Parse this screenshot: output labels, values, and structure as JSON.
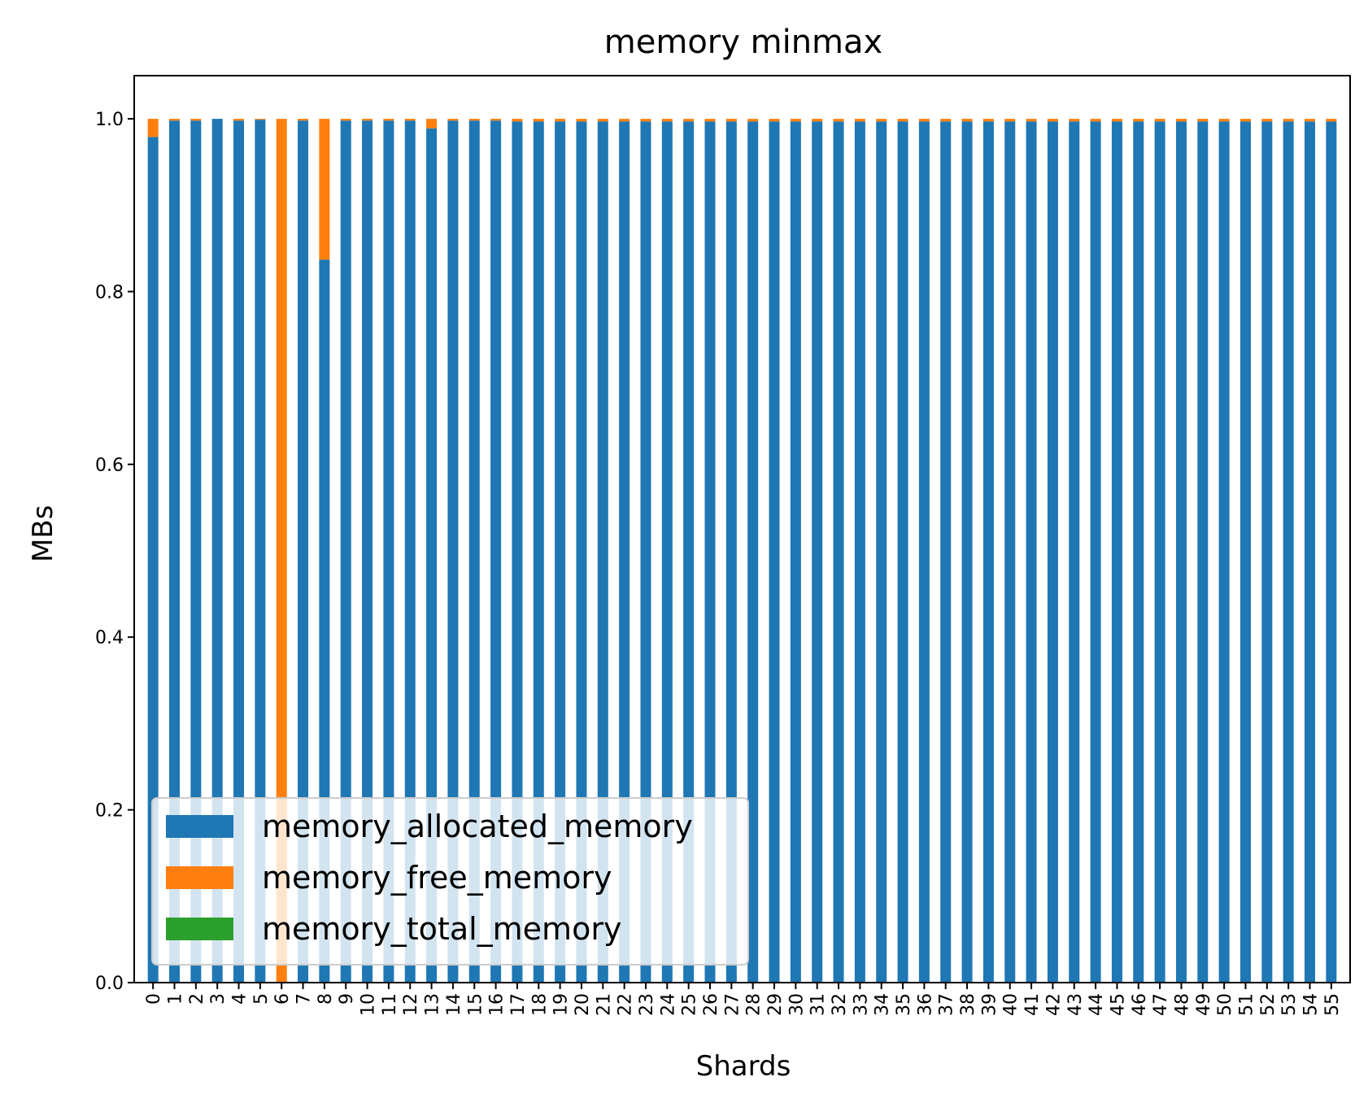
{
  "chart_data": {
    "type": "bar",
    "stacked": true,
    "title": "memory minmax",
    "xlabel": "Shards",
    "ylabel": "MBs",
    "ylim": [
      0,
      1.05
    ],
    "yticks": [
      "0.0",
      "0.2",
      "0.4",
      "0.6",
      "0.8",
      "1.0"
    ],
    "grid": false,
    "legend_position": "lower-left",
    "categories": [
      "0",
      "1",
      "2",
      "3",
      "4",
      "5",
      "6",
      "7",
      "8",
      "9",
      "10",
      "11",
      "12",
      "13",
      "14",
      "15",
      "16",
      "17",
      "18",
      "19",
      "20",
      "21",
      "22",
      "23",
      "24",
      "25",
      "26",
      "27",
      "28",
      "29",
      "30",
      "31",
      "32",
      "33",
      "34",
      "35",
      "36",
      "37",
      "38",
      "39",
      "40",
      "41",
      "42",
      "43",
      "44",
      "45",
      "46",
      "47",
      "48",
      "49",
      "50",
      "51",
      "52",
      "53",
      "54",
      "55"
    ],
    "series": [
      {
        "name": "memory_allocated_memory",
        "color": "#1f77b4",
        "values": [
          0.979,
          0.998,
          0.998,
          1.0,
          0.998,
          0.999,
          0.0,
          0.998,
          0.837,
          0.998,
          0.998,
          0.998,
          0.998,
          0.989,
          0.998,
          0.998,
          0.998,
          0.997,
          0.997,
          0.997,
          0.997,
          0.997,
          0.997,
          0.997,
          0.997,
          0.997,
          0.997,
          0.997,
          0.997,
          0.997,
          0.997,
          0.997,
          0.997,
          0.997,
          0.997,
          0.997,
          0.997,
          0.997,
          0.997,
          0.997,
          0.997,
          0.997,
          0.997,
          0.997,
          0.997,
          0.997,
          0.997,
          0.997,
          0.997,
          0.997,
          0.997,
          0.997,
          0.997,
          0.997,
          0.997,
          0.997
        ]
      },
      {
        "name": "memory_free_memory",
        "color": "#ff7f0e",
        "values": [
          0.021,
          0.002,
          0.002,
          0.0,
          0.002,
          0.001,
          1.0,
          0.002,
          0.163,
          0.002,
          0.002,
          0.002,
          0.002,
          0.011,
          0.002,
          0.002,
          0.002,
          0.003,
          0.003,
          0.003,
          0.003,
          0.003,
          0.003,
          0.003,
          0.003,
          0.003,
          0.003,
          0.003,
          0.003,
          0.003,
          0.003,
          0.003,
          0.003,
          0.003,
          0.003,
          0.003,
          0.003,
          0.003,
          0.003,
          0.003,
          0.003,
          0.003,
          0.003,
          0.003,
          0.003,
          0.003,
          0.003,
          0.003,
          0.003,
          0.003,
          0.003,
          0.003,
          0.003,
          0.003,
          0.003,
          0.003
        ]
      },
      {
        "name": "memory_total_memory",
        "color": "#2ca02c",
        "values": [
          0,
          0,
          0,
          0,
          0,
          0,
          0,
          0,
          0,
          0,
          0,
          0,
          0,
          0,
          0,
          0,
          0,
          0,
          0,
          0,
          0,
          0,
          0,
          0,
          0,
          0,
          0,
          0,
          0,
          0,
          0,
          0,
          0,
          0,
          0,
          0,
          0,
          0,
          0,
          0,
          0,
          0,
          0,
          0,
          0,
          0,
          0,
          0,
          0,
          0,
          0,
          0,
          0,
          0,
          0,
          0
        ]
      }
    ]
  }
}
